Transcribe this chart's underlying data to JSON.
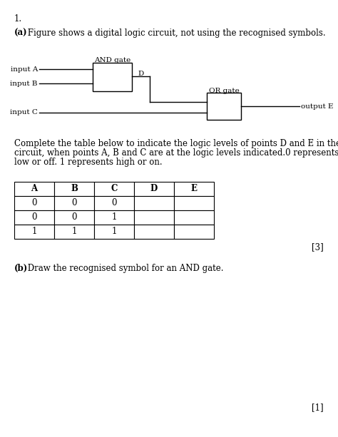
{
  "title_number": "1.",
  "part_a_bold": "(a)",
  "part_a_rest": " Figure shows a digital logic circuit, not using the recognised symbols.",
  "and_gate_label": "AND gate",
  "or_gate_label": "OR gate",
  "input_a_label": "input A",
  "input_b_label": "input B",
  "input_c_label": "input C",
  "output_e_label": "output E",
  "point_d_label": "D",
  "circuit_text_line1": "Complete the table below to indicate the logic levels of points D and E in the",
  "circuit_text_line2": "circuit, when points A, B and C are at the logic levels indicated.0 represents",
  "circuit_text_line3": "low or off. 1 represents high or on.",
  "table_headers": [
    "A",
    "B",
    "C",
    "D",
    "E"
  ],
  "table_rows": [
    [
      "0",
      "0",
      "0",
      "",
      ""
    ],
    [
      "0",
      "0",
      "1",
      "",
      ""
    ],
    [
      "1",
      "1",
      "1",
      "",
      ""
    ]
  ],
  "mark_a": "[3]",
  "part_b_bold": "(b)",
  "part_b_rest": " Draw the recognised symbol for an AND gate.",
  "mark_b": "[1]",
  "bg_color": "#ffffff",
  "text_color": "#000000",
  "line_color": "#000000",
  "fs_body": 8.5,
  "fs_circuit": 7.5
}
